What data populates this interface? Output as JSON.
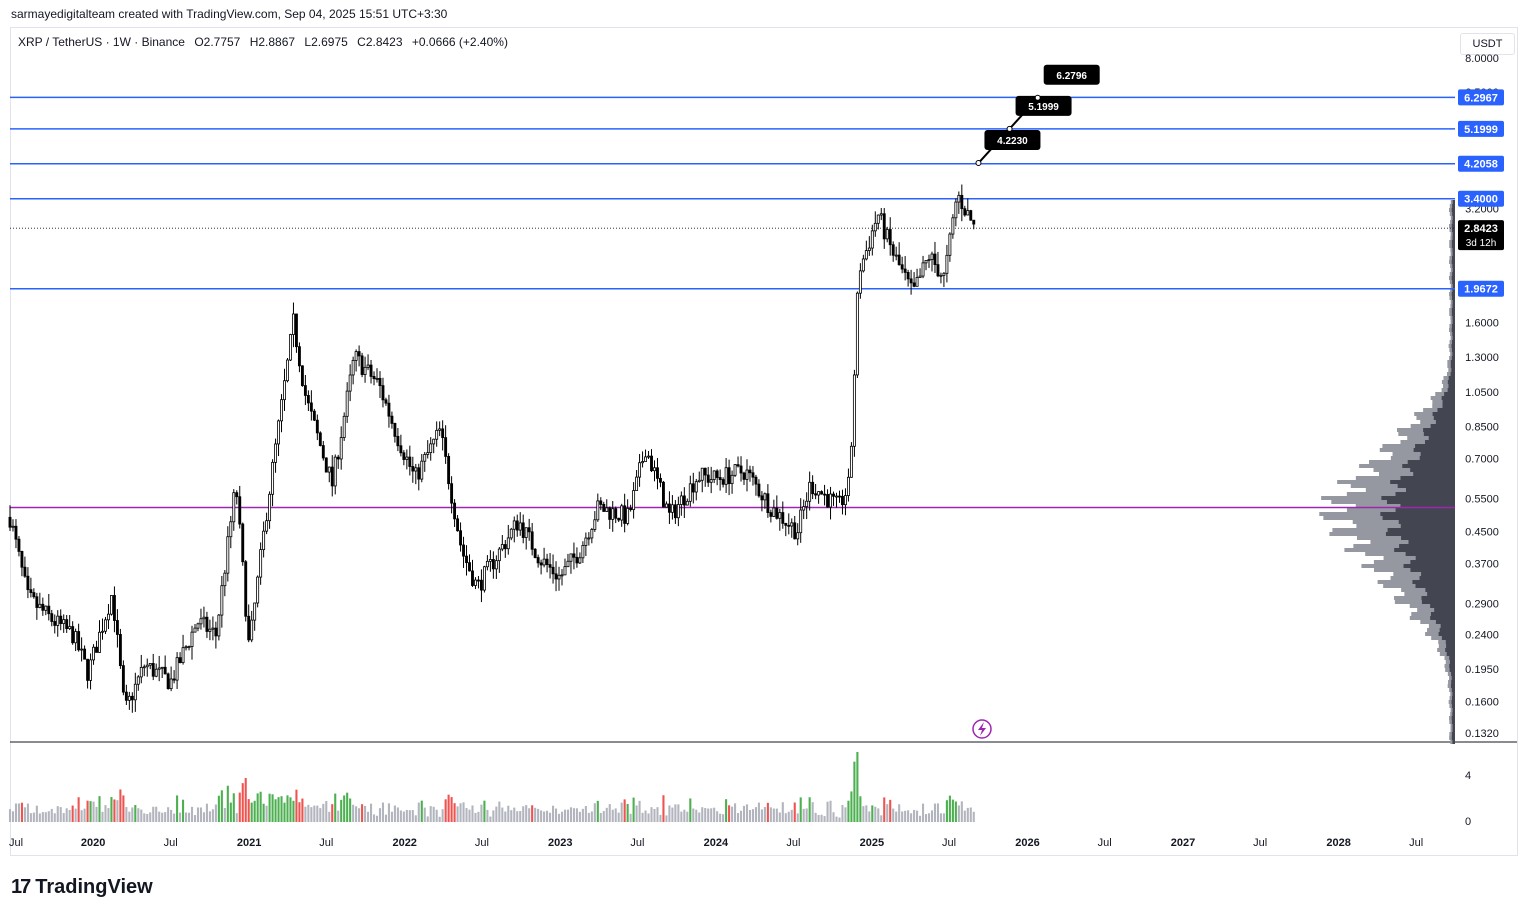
{
  "attribution": "sarmayedigitalteam created with TradingView.com, Sep 04, 2025 15:51 UTC+3:30",
  "legend": {
    "symbol": "XRP / TetherUS · 1W · Binance",
    "open": "O2.7757",
    "high": "H2.8867",
    "low": "L2.6975",
    "close": "C2.8423",
    "change": "+0.0666 (+2.40%)"
  },
  "currency": "USDT",
  "branding": {
    "logo_mark": "17",
    "name": "TradingView"
  },
  "colors": {
    "level_line": "#2962ff",
    "poc_line": "#9c27b0",
    "label_bg": "#2962ff",
    "price_label_bg": "#000000",
    "candle": "#000000",
    "vol_default": "#b2b5be",
    "vol_up": "#4caf50",
    "vol_down": "#ef5350",
    "profile_dark": "#434651",
    "profile_light": "#9598a1"
  },
  "chart_data": {
    "type": "candlestick",
    "scale": "log",
    "ylim": [
      0.125,
      8.5
    ],
    "x_axis": {
      "range": [
        "2019-06-20",
        "2028-09-30"
      ],
      "ticks": [
        {
          "label": "Jul",
          "date": "2019-07-01"
        },
        {
          "label": "2020",
          "date": "2020-01-01"
        },
        {
          "label": "Jul",
          "date": "2020-07-01"
        },
        {
          "label": "2021",
          "date": "2021-01-01"
        },
        {
          "label": "Jul",
          "date": "2021-07-01"
        },
        {
          "label": "2022",
          "date": "2022-01-01"
        },
        {
          "label": "Jul",
          "date": "2022-07-01"
        },
        {
          "label": "2023",
          "date": "2023-01-01"
        },
        {
          "label": "Jul",
          "date": "2023-07-01"
        },
        {
          "label": "2024",
          "date": "2024-01-01"
        },
        {
          "label": "Jul",
          "date": "2024-07-01"
        },
        {
          "label": "2025",
          "date": "2025-01-01"
        },
        {
          "label": "Jul",
          "date": "2025-07-01"
        },
        {
          "label": "2026",
          "date": "2026-01-01"
        },
        {
          "label": "Jul",
          "date": "2026-07-01"
        },
        {
          "label": "2027",
          "date": "2027-01-01"
        },
        {
          "label": "Jul",
          "date": "2027-07-01"
        },
        {
          "label": "2028",
          "date": "2028-01-01"
        },
        {
          "label": "Jul",
          "date": "2028-07-01"
        }
      ]
    },
    "y_ticks": [
      "8.0000",
      "6.5000",
      "3.2000",
      "1.6000",
      "1.3000",
      "1.0500",
      "0.8500",
      "0.7000",
      "0.5500",
      "0.4500",
      "0.3700",
      "0.2900",
      "0.2400",
      "0.1950",
      "0.1600",
      "0.1320"
    ],
    "levels": [
      {
        "price": 6.2967,
        "label": "6.2967"
      },
      {
        "price": 5.1999,
        "label": "5.1999"
      },
      {
        "price": 4.2058,
        "label": "4.2058"
      },
      {
        "price": 3.4,
        "label": "3.4000"
      },
      {
        "price": 1.9672,
        "label": "1.9672"
      }
    ],
    "poc_price": 0.52,
    "current_price": {
      "price": 2.8423,
      "label": "2.8423",
      "countdown": "3d 12h"
    },
    "projection": [
      {
        "date": "2025-09-08",
        "price": 4.223,
        "label": "4.2230"
      },
      {
        "date": "2025-11-20",
        "price": 5.1999,
        "label": "5.1999"
      },
      {
        "date": "2026-01-25",
        "price": 6.2796,
        "label": "6.2796"
      }
    ],
    "price_path": [
      [
        "2019-06-20",
        0.49
      ],
      [
        "2019-08-01",
        0.3
      ],
      [
        "2019-10-01",
        0.26
      ],
      [
        "2019-11-15",
        0.24
      ],
      [
        "2019-12-20",
        0.19
      ],
      [
        "2020-02-15",
        0.31
      ],
      [
        "2020-03-15",
        0.15
      ],
      [
        "2020-05-01",
        0.2
      ],
      [
        "2020-07-01",
        0.18
      ],
      [
        "2020-09-01",
        0.26
      ],
      [
        "2020-10-15",
        0.24
      ],
      [
        "2020-12-01",
        0.6
      ],
      [
        "2021-01-01",
        0.22
      ],
      [
        "2021-02-15",
        0.55
      ],
      [
        "2021-04-15",
        1.6
      ],
      [
        "2021-05-15",
        1.0
      ],
      [
        "2021-07-15",
        0.6
      ],
      [
        "2021-09-05",
        1.3
      ],
      [
        "2021-11-01",
        1.1
      ],
      [
        "2021-12-15",
        0.8
      ],
      [
        "2022-01-25",
        0.62
      ],
      [
        "2022-03-25",
        0.83
      ],
      [
        "2022-05-15",
        0.4
      ],
      [
        "2022-06-20",
        0.32
      ],
      [
        "2022-09-25",
        0.48
      ],
      [
        "2022-11-15",
        0.38
      ],
      [
        "2022-12-31",
        0.34
      ],
      [
        "2023-02-15",
        0.4
      ],
      [
        "2023-03-31",
        0.52
      ],
      [
        "2023-06-10",
        0.49
      ],
      [
        "2023-07-20",
        0.75
      ],
      [
        "2023-09-15",
        0.49
      ],
      [
        "2023-11-20",
        0.63
      ],
      [
        "2024-01-01",
        0.62
      ],
      [
        "2024-03-10",
        0.65
      ],
      [
        "2024-05-10",
        0.52
      ],
      [
        "2024-07-10",
        0.45
      ],
      [
        "2024-08-10",
        0.6
      ],
      [
        "2024-10-15",
        0.52
      ],
      [
        "2024-11-10",
        0.6
      ],
      [
        "2024-12-01",
        2.2
      ],
      [
        "2024-12-15",
        2.4
      ],
      [
        "2025-01-15",
        3.1
      ],
      [
        "2025-02-15",
        2.5
      ],
      [
        "2025-04-07",
        1.9
      ],
      [
        "2025-05-15",
        2.4
      ],
      [
        "2025-06-20",
        2.1
      ],
      [
        "2025-07-20",
        3.5
      ],
      [
        "2025-08-31",
        2.84
      ]
    ]
  }
}
